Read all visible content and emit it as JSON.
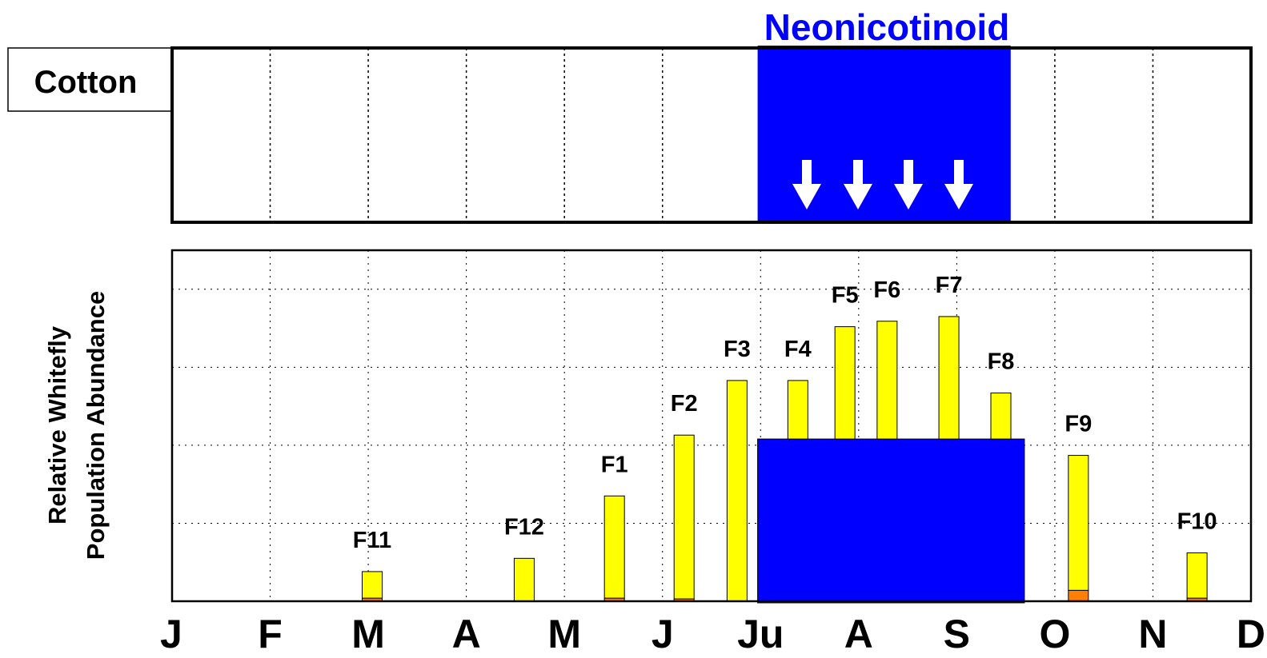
{
  "chart_data": {
    "type": "bar",
    "crop_label": "Cotton",
    "treatment": {
      "label": "Neonicotinoid",
      "x": [
        5.97,
        8.55
      ],
      "color": "#0000ff"
    },
    "protection": {
      "x": [
        5.97,
        8.69
      ],
      "height": 2.08,
      "color": "#0000ff"
    },
    "ylabel": [
      "Relative Whitefly",
      "Population Abundance"
    ],
    "labels": [
      "F11",
      "F12",
      "F1",
      "F2",
      "F3",
      "F4",
      "F5",
      "F6",
      "F7",
      "F8",
      "F9",
      "F10"
    ],
    "x": [
      2.04,
      3.59,
      4.51,
      5.22,
      5.76,
      6.38,
      6.86,
      7.29,
      7.92,
      8.45,
      9.24,
      10.45
    ],
    "series": [
      {
        "color": "#ff7f00",
        "values": [
          0.04,
          0,
          0.04,
          0.03,
          0,
          0,
          0,
          0,
          0,
          0,
          0.14,
          0.04
        ]
      },
      {
        "color": "#ffff00",
        "values": [
          0.34,
          0.55,
          1.31,
          2.1,
          2.83,
          2.83,
          3.52,
          3.59,
          3.65,
          2.67,
          1.73,
          0.58
        ]
      }
    ],
    "xlim": [
      0,
      11
    ],
    "xticks": [
      {
        "value": 0,
        "label": "J"
      },
      {
        "value": 1,
        "label": "F"
      },
      {
        "value": 2,
        "label": "M"
      },
      {
        "value": 3,
        "label": "A"
      },
      {
        "value": 4,
        "label": "M"
      },
      {
        "value": 5,
        "label": "J"
      },
      {
        "value": 6,
        "label": "Ju"
      },
      {
        "value": 7,
        "label": "A"
      },
      {
        "value": 8,
        "label": "S"
      },
      {
        "value": 9,
        "label": "O"
      },
      {
        "value": 10,
        "label": "N"
      },
      {
        "value": 11,
        "label": "D"
      }
    ],
    "ylim": [
      0,
      4.5
    ],
    "yticks": [
      0,
      1,
      2,
      3,
      4
    ],
    "grid": true
  }
}
